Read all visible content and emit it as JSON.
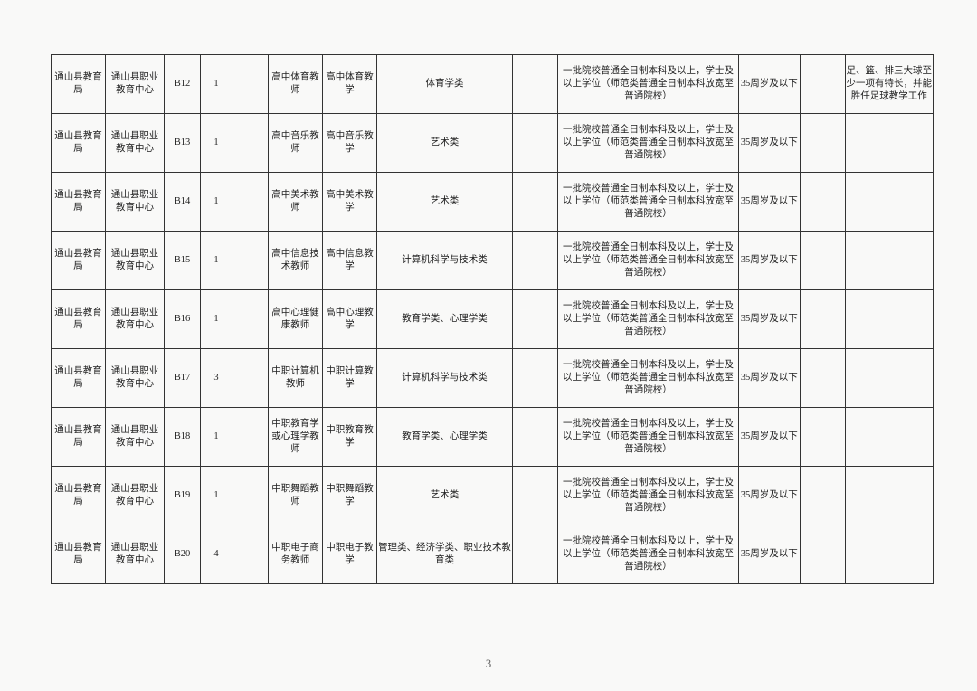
{
  "page_number": "3",
  "columns_count": 13,
  "rows": [
    {
      "c1": "通山县教育局",
      "c2": "通山县职业教育中心",
      "c3": "B12",
      "c4": "1",
      "c5": "",
      "c6": "高中体育教师",
      "c7": "高中体育教学",
      "c8": "体育学类",
      "c9": "",
      "c10": "一批院校普通全日制本科及以上，学士及以上学位（师范类普通全日制本科放宽至普通院校）",
      "c11": "35周岁及以下",
      "c12": "",
      "c13": "足、篮、排三大球至少一项有特长，并能胜任足球教学工作"
    },
    {
      "c1": "通山县教育局",
      "c2": "通山县职业教育中心",
      "c3": "B13",
      "c4": "1",
      "c5": "",
      "c6": "高中音乐教师",
      "c7": "高中音乐教学",
      "c8": "艺术类",
      "c9": "",
      "c10": "一批院校普通全日制本科及以上，学士及以上学位（师范类普通全日制本科放宽至普通院校）",
      "c11": "35周岁及以下",
      "c12": "",
      "c13": ""
    },
    {
      "c1": "通山县教育局",
      "c2": "通山县职业教育中心",
      "c3": "B14",
      "c4": "1",
      "c5": "",
      "c6": "高中美术教师",
      "c7": "高中美术教学",
      "c8": "艺术类",
      "c9": "",
      "c10": "一批院校普通全日制本科及以上，学士及以上学位（师范类普通全日制本科放宽至普通院校）",
      "c11": "35周岁及以下",
      "c12": "",
      "c13": ""
    },
    {
      "c1": "通山县教育局",
      "c2": "通山县职业教育中心",
      "c3": "B15",
      "c4": "1",
      "c5": "",
      "c6": "高中信息技术教师",
      "c7": "高中信息教学",
      "c8": "计算机科学与技术类",
      "c9": "",
      "c10": "一批院校普通全日制本科及以上，学士及以上学位（师范类普通全日制本科放宽至普通院校）",
      "c11": "35周岁及以下",
      "c12": "",
      "c13": ""
    },
    {
      "c1": "通山县教育局",
      "c2": "通山县职业教育中心",
      "c3": "B16",
      "c4": "1",
      "c5": "",
      "c6": "高中心理健康教师",
      "c7": "高中心理教学",
      "c8": "教育学类、心理学类",
      "c9": "",
      "c10": "一批院校普通全日制本科及以上，学士及以上学位（师范类普通全日制本科放宽至普通院校）",
      "c11": "35周岁及以下",
      "c12": "",
      "c13": ""
    },
    {
      "c1": "通山县教育局",
      "c2": "通山县职业教育中心",
      "c3": "B17",
      "c4": "3",
      "c5": "",
      "c6": "中职计算机教师",
      "c7": "中职计算教学",
      "c8": "计算机科学与技术类",
      "c9": "",
      "c10": "一批院校普通全日制本科及以上，学士及以上学位（师范类普通全日制本科放宽至普通院校）",
      "c11": "35周岁及以下",
      "c12": "",
      "c13": ""
    },
    {
      "c1": "通山县教育局",
      "c2": "通山县职业教育中心",
      "c3": "B18",
      "c4": "1",
      "c5": "",
      "c6": "中职教育学或心理学教师",
      "c7": "中职教育教学",
      "c8": "教育学类、心理学类",
      "c9": "",
      "c10": "一批院校普通全日制本科及以上，学士及以上学位（师范类普通全日制本科放宽至普通院校）",
      "c11": "35周岁及以下",
      "c12": "",
      "c13": ""
    },
    {
      "c1": "通山县教育局",
      "c2": "通山县职业教育中心",
      "c3": "B19",
      "c4": "1",
      "c5": "",
      "c6": "中职舞蹈教师",
      "c7": "中职舞蹈教学",
      "c8": "艺术类",
      "c9": "",
      "c10": "一批院校普通全日制本科及以上，学士及以上学位（师范类普通全日制本科放宽至普通院校）",
      "c11": "35周岁及以下",
      "c12": "",
      "c13": ""
    },
    {
      "c1": "通山县教育局",
      "c2": "通山县职业教育中心",
      "c3": "B20",
      "c4": "4",
      "c5": "",
      "c6": "中职电子商务教师",
      "c7": "中职电子教学",
      "c8": "管理类、经济学类、职业技术教育类",
      "c9": "",
      "c10": "一批院校普通全日制本科及以上，学士及以上学位（师范类普通全日制本科放宽至普通院校）",
      "c11": "35周岁及以下",
      "c12": "",
      "c13": ""
    }
  ]
}
